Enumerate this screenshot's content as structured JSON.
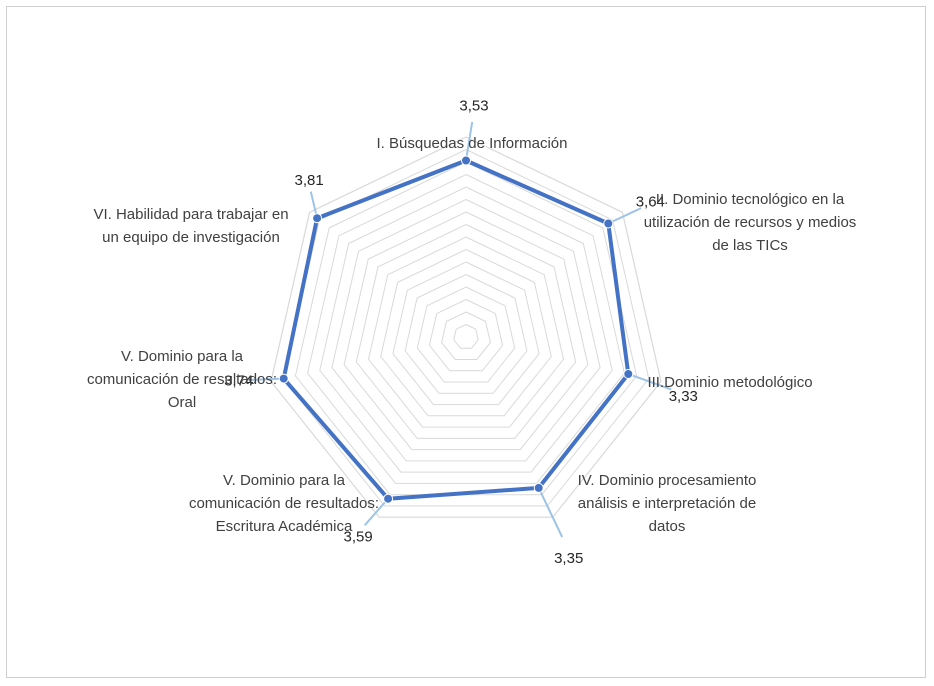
{
  "chart_data": {
    "type": "radar",
    "categories": [
      "I. Búsquedas de Información",
      "II. Dominio tecnológico en la utilización de recursos y medios de las TICs",
      "III.Dominio metodológico",
      "IV. Dominio procesamiento análisis e interpretación de datos",
      "V. Dominio para la comunicación de resultados: Escritura Académica",
      "V. Dominio para la comunicación de resultados: Oral",
      "VI.  Habilidad  para trabajar  en un equipo de investigación"
    ],
    "category_lines": [
      [
        "I. Búsquedas de Información"
      ],
      [
        "II. Dominio tecnológico en la",
        "utilización de recursos y medios",
        "de las TICs"
      ],
      [
        "III.Dominio metodológico"
      ],
      [
        "IV. Dominio procesamiento",
        "análisis e interpretación de",
        "datos"
      ],
      [
        "V. Dominio para la",
        "comunicación de resultados:",
        "Escritura Académica"
      ],
      [
        "V. Dominio para la",
        "comunicación de resultados:",
        "Oral"
      ],
      [
        "VI.  Habilidad  para trabajar  en",
        "un equipo de investigación"
      ]
    ],
    "values": [
      3.53,
      3.64,
      3.33,
      3.35,
      3.59,
      3.74,
      3.81
    ],
    "data_labels": [
      "3,53",
      "3,64",
      "3,33",
      "3,35",
      "3,59",
      "3,74",
      "3,81"
    ],
    "range": [
      0,
      4
    ],
    "grid_levels": 16,
    "grid": true,
    "legend": "none",
    "colors": {
      "series": "#4472C4",
      "leader": "#9DC3E6",
      "grid": "#d9d9d9",
      "text": "#404040"
    }
  }
}
